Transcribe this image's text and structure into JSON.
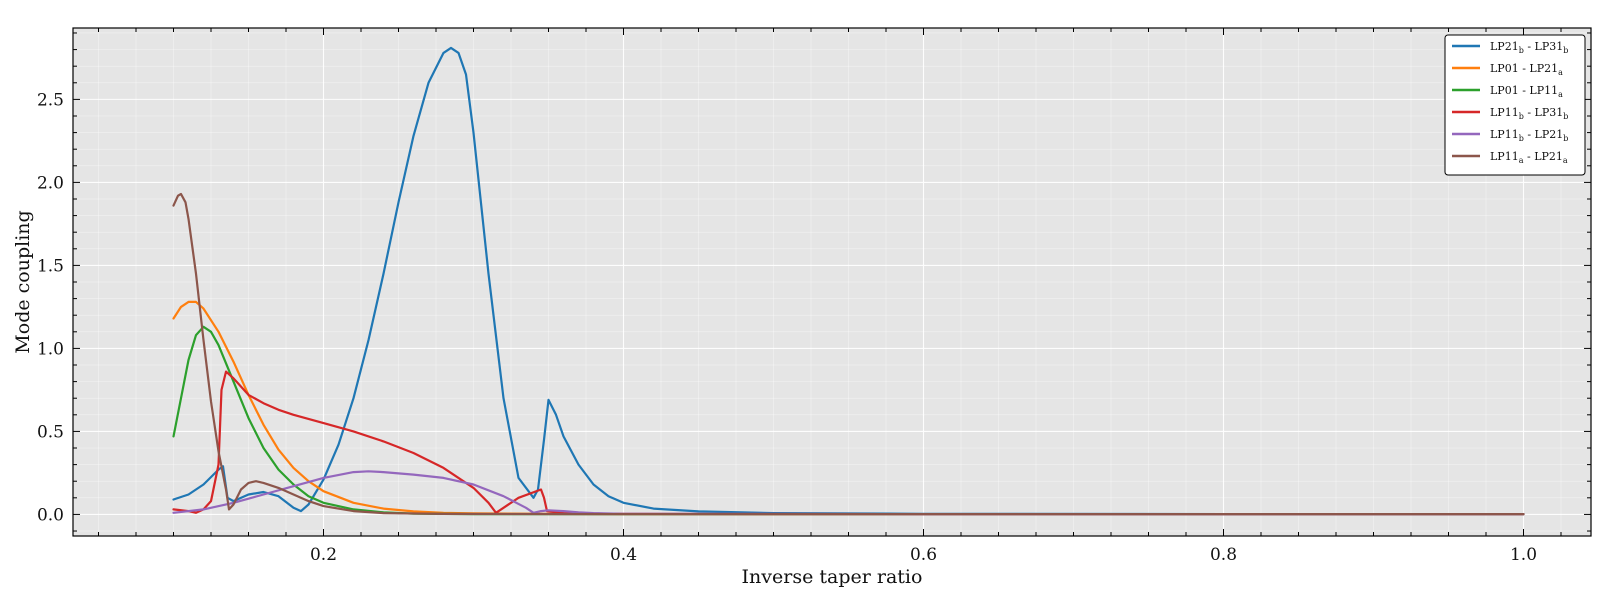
{
  "chart_data": {
    "type": "line",
    "title": "",
    "xlabel": "Inverse taper ratio",
    "ylabel": "Mode coupling",
    "xlim": [
      0.033,
      1.045
    ],
    "ylim": [
      -0.13,
      2.93
    ],
    "xticks": [
      0.2,
      0.4,
      0.6,
      0.8,
      1.0
    ],
    "xtick_labels": [
      "0.2",
      "0.4",
      "0.6",
      "0.8",
      "1.0"
    ],
    "yticks": [
      0.0,
      0.5,
      1.0,
      1.5,
      2.0,
      2.5
    ],
    "ytick_labels": [
      "0.0",
      "0.5",
      "1.0",
      "1.5",
      "2.0",
      "2.5"
    ],
    "grid": true,
    "legend_position": "top-right",
    "background": "#e5e5e5",
    "series": [
      {
        "name": "LP21b - LP31b",
        "legend": {
          "base1": "LP21",
          "sub1": "b",
          "base2": "LP31",
          "sub2": "b"
        },
        "color": "#1f77b4",
        "points": [
          [
            0.1,
            0.09
          ],
          [
            0.11,
            0.12
          ],
          [
            0.12,
            0.18
          ],
          [
            0.13,
            0.27
          ],
          [
            0.133,
            0.29
          ],
          [
            0.136,
            0.1
          ],
          [
            0.14,
            0.08
          ],
          [
            0.15,
            0.12
          ],
          [
            0.16,
            0.135
          ],
          [
            0.17,
            0.11
          ],
          [
            0.18,
            0.04
          ],
          [
            0.185,
            0.02
          ],
          [
            0.19,
            0.06
          ],
          [
            0.2,
            0.21
          ],
          [
            0.21,
            0.42
          ],
          [
            0.22,
            0.7
          ],
          [
            0.23,
            1.05
          ],
          [
            0.24,
            1.45
          ],
          [
            0.25,
            1.88
          ],
          [
            0.26,
            2.28
          ],
          [
            0.27,
            2.6
          ],
          [
            0.28,
            2.78
          ],
          [
            0.285,
            2.81
          ],
          [
            0.29,
            2.78
          ],
          [
            0.295,
            2.65
          ],
          [
            0.3,
            2.3
          ],
          [
            0.31,
            1.45
          ],
          [
            0.32,
            0.7
          ],
          [
            0.33,
            0.22
          ],
          [
            0.34,
            0.1
          ],
          [
            0.343,
            0.15
          ],
          [
            0.347,
            0.45
          ],
          [
            0.35,
            0.69
          ],
          [
            0.355,
            0.6
          ],
          [
            0.36,
            0.47
          ],
          [
            0.37,
            0.3
          ],
          [
            0.38,
            0.18
          ],
          [
            0.39,
            0.11
          ],
          [
            0.4,
            0.07
          ],
          [
            0.42,
            0.035
          ],
          [
            0.45,
            0.018
          ],
          [
            0.5,
            0.008
          ],
          [
            0.6,
            0.004
          ],
          [
            0.8,
            0.002
          ],
          [
            1.0,
            0.002
          ]
        ]
      },
      {
        "name": "LP01 - LP21a",
        "legend": {
          "base1": "LP01",
          "sub1": "",
          "base2": "LP21",
          "sub2": "a"
        },
        "color": "#ff7f0e",
        "points": [
          [
            0.1,
            1.18
          ],
          [
            0.105,
            1.25
          ],
          [
            0.11,
            1.28
          ],
          [
            0.115,
            1.28
          ],
          [
            0.12,
            1.24
          ],
          [
            0.13,
            1.1
          ],
          [
            0.14,
            0.92
          ],
          [
            0.15,
            0.72
          ],
          [
            0.16,
            0.54
          ],
          [
            0.17,
            0.39
          ],
          [
            0.18,
            0.28
          ],
          [
            0.19,
            0.2
          ],
          [
            0.2,
            0.14
          ],
          [
            0.22,
            0.07
          ],
          [
            0.24,
            0.035
          ],
          [
            0.26,
            0.018
          ],
          [
            0.28,
            0.01
          ],
          [
            0.3,
            0.006
          ],
          [
            0.35,
            0.003
          ],
          [
            0.4,
            0.002
          ],
          [
            0.6,
            0.002
          ],
          [
            1.0,
            0.002
          ]
        ]
      },
      {
        "name": "LP01 - LP11a",
        "legend": {
          "base1": "LP01",
          "sub1": "",
          "base2": "LP11",
          "sub2": "a"
        },
        "color": "#2ca02c",
        "points": [
          [
            0.1,
            0.47
          ],
          [
            0.105,
            0.7
          ],
          [
            0.11,
            0.93
          ],
          [
            0.115,
            1.08
          ],
          [
            0.12,
            1.13
          ],
          [
            0.125,
            1.1
          ],
          [
            0.13,
            1.02
          ],
          [
            0.14,
            0.8
          ],
          [
            0.15,
            0.58
          ],
          [
            0.16,
            0.4
          ],
          [
            0.17,
            0.27
          ],
          [
            0.18,
            0.18
          ],
          [
            0.19,
            0.11
          ],
          [
            0.2,
            0.07
          ],
          [
            0.22,
            0.03
          ],
          [
            0.24,
            0.012
          ],
          [
            0.26,
            0.005
          ],
          [
            0.3,
            0.002
          ],
          [
            0.4,
            0.002
          ],
          [
            0.6,
            0.002
          ],
          [
            1.0,
            0.002
          ]
        ]
      },
      {
        "name": "LP11b - LP31b",
        "legend": {
          "base1": "LP11",
          "sub1": "b",
          "base2": "LP31",
          "sub2": "b"
        },
        "color": "#d62728",
        "points": [
          [
            0.1,
            0.03
          ],
          [
            0.11,
            0.02
          ],
          [
            0.115,
            0.01
          ],
          [
            0.12,
            0.03
          ],
          [
            0.125,
            0.08
          ],
          [
            0.13,
            0.3
          ],
          [
            0.132,
            0.75
          ],
          [
            0.135,
            0.86
          ],
          [
            0.14,
            0.82
          ],
          [
            0.15,
            0.72
          ],
          [
            0.16,
            0.67
          ],
          [
            0.17,
            0.63
          ],
          [
            0.18,
            0.6
          ],
          [
            0.2,
            0.55
          ],
          [
            0.22,
            0.5
          ],
          [
            0.24,
            0.44
          ],
          [
            0.26,
            0.37
          ],
          [
            0.28,
            0.28
          ],
          [
            0.3,
            0.16
          ],
          [
            0.31,
            0.07
          ],
          [
            0.315,
            0.01
          ],
          [
            0.32,
            0.04
          ],
          [
            0.33,
            0.1
          ],
          [
            0.345,
            0.15
          ],
          [
            0.347,
            0.1
          ],
          [
            0.349,
            0.02
          ],
          [
            0.36,
            0.008
          ],
          [
            0.4,
            0.003
          ],
          [
            0.6,
            0.002
          ],
          [
            1.0,
            0.002
          ]
        ]
      },
      {
        "name": "LP11b - LP21b",
        "legend": {
          "base1": "LP11",
          "sub1": "b",
          "base2": "LP21",
          "sub2": "b"
        },
        "color": "#9467bd",
        "points": [
          [
            0.1,
            0.01
          ],
          [
            0.12,
            0.03
          ],
          [
            0.14,
            0.07
          ],
          [
            0.16,
            0.12
          ],
          [
            0.18,
            0.17
          ],
          [
            0.2,
            0.22
          ],
          [
            0.22,
            0.255
          ],
          [
            0.23,
            0.26
          ],
          [
            0.24,
            0.255
          ],
          [
            0.26,
            0.24
          ],
          [
            0.28,
            0.22
          ],
          [
            0.3,
            0.18
          ],
          [
            0.32,
            0.11
          ],
          [
            0.335,
            0.04
          ],
          [
            0.34,
            0.01
          ],
          [
            0.345,
            0.02
          ],
          [
            0.35,
            0.025
          ],
          [
            0.36,
            0.02
          ],
          [
            0.37,
            0.012
          ],
          [
            0.38,
            0.008
          ],
          [
            0.4,
            0.004
          ],
          [
            0.6,
            0.002
          ],
          [
            1.0,
            0.002
          ]
        ]
      },
      {
        "name": "LP11a - LP21a",
        "legend": {
          "base1": "LP11",
          "sub1": "a",
          "base2": "LP21",
          "sub2": "a"
        },
        "color": "#8c564b",
        "points": [
          [
            0.1,
            1.86
          ],
          [
            0.103,
            1.92
          ],
          [
            0.105,
            1.93
          ],
          [
            0.108,
            1.88
          ],
          [
            0.11,
            1.78
          ],
          [
            0.115,
            1.45
          ],
          [
            0.12,
            1.05
          ],
          [
            0.125,
            0.68
          ],
          [
            0.13,
            0.38
          ],
          [
            0.135,
            0.15
          ],
          [
            0.137,
            0.03
          ],
          [
            0.14,
            0.06
          ],
          [
            0.145,
            0.15
          ],
          [
            0.15,
            0.19
          ],
          [
            0.155,
            0.2
          ],
          [
            0.16,
            0.19
          ],
          [
            0.17,
            0.16
          ],
          [
            0.18,
            0.12
          ],
          [
            0.19,
            0.08
          ],
          [
            0.2,
            0.05
          ],
          [
            0.22,
            0.02
          ],
          [
            0.24,
            0.008
          ],
          [
            0.28,
            0.003
          ],
          [
            0.4,
            0.002
          ],
          [
            0.6,
            0.002
          ],
          [
            1.0,
            0.002
          ]
        ]
      }
    ]
  }
}
